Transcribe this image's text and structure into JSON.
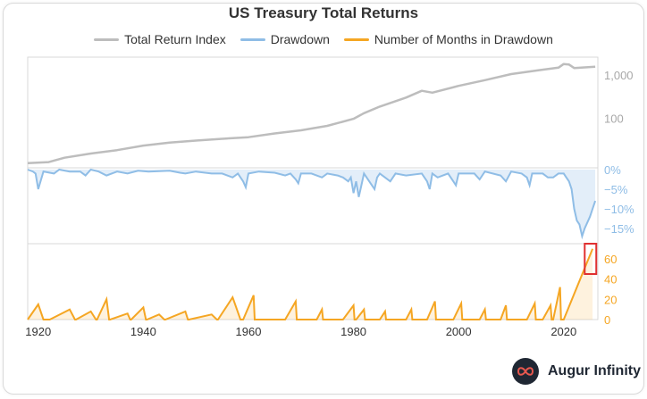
{
  "title": "US Treasury Total Returns",
  "legend": [
    {
      "label": "Total Return Index",
      "color": "#bdbdbd"
    },
    {
      "label": "Drawdown",
      "color": "#8fbde6"
    },
    {
      "label": "Number of Months in Drawdown",
      "color": "#f5a623"
    }
  ],
  "brand": {
    "name": "Augur Infinity",
    "icon": "infinity-icon"
  },
  "highlight_color": "#e03030",
  "chart_data": [
    {
      "type": "line",
      "name": "Total Return Index",
      "scale": "log",
      "color": "#bdbdbd",
      "yticks": [
        100,
        1000
      ],
      "ytick_labels": [
        "100",
        "1,000"
      ],
      "ylim": [
        7,
        2600
      ],
      "x": [
        1918,
        1922,
        1925,
        1930,
        1935,
        1940,
        1945,
        1950,
        1955,
        1960,
        1965,
        1970,
        1975,
        1980,
        1982,
        1985,
        1990,
        1993,
        1995,
        2000,
        2005,
        2010,
        2015,
        2019,
        2020,
        2021,
        2022,
        2024,
        2026
      ],
      "values": [
        9,
        9.5,
        12,
        15,
        18,
        23,
        27,
        30,
        33,
        36,
        44,
        52,
        66,
        96,
        130,
        185,
        300,
        430,
        390,
        560,
        760,
        1050,
        1280,
        1480,
        1800,
        1750,
        1450,
        1500,
        1550
      ]
    },
    {
      "type": "area",
      "name": "Drawdown",
      "color": "#8fbde6",
      "yticks": [
        0,
        -5,
        -10,
        -15
      ],
      "ytick_labels": [
        "0%",
        "−5%",
        "−10%",
        "−15%"
      ],
      "ylim": [
        -18,
        0
      ],
      "x": [
        1918,
        1919,
        1919.5,
        1920,
        1921,
        1923,
        1924,
        1926,
        1928,
        1929,
        1930,
        1931.5,
        1933,
        1935,
        1937,
        1939,
        1941,
        1945,
        1947,
        1948,
        1950,
        1953,
        1955,
        1957,
        1958,
        1959,
        1959.5,
        1960,
        1962,
        1965,
        1967,
        1968,
        1969,
        1969.5,
        1970,
        1972,
        1974,
        1975,
        1977,
        1978,
        1979,
        1979.5,
        1980,
        1980.5,
        1981,
        1981.5,
        1982,
        1983,
        1984,
        1984.5,
        1985,
        1987,
        1988,
        1990,
        1993,
        1994,
        1994.5,
        1995,
        1996,
        1998,
        1999,
        1999.5,
        2000,
        2003,
        2004,
        2005,
        2008,
        2009,
        2010,
        2012,
        2013,
        2013.5,
        2014,
        2016,
        2017,
        2018,
        2019,
        2020,
        2020.5,
        2021,
        2021.5,
        2022,
        2022.5,
        2023,
        2023.5,
        2024,
        2025,
        2025.5,
        2026
      ],
      "values": [
        0,
        -0.5,
        -1,
        -5,
        -0.5,
        -1,
        0,
        -0.5,
        -0.5,
        -1.5,
        0,
        -0.5,
        -1.5,
        -0.5,
        -1,
        -0.3,
        -0.5,
        -0.3,
        -0.8,
        -1,
        -0.5,
        -1,
        -1,
        -2,
        -1,
        -3,
        -4.5,
        -1,
        -0.5,
        -0.8,
        -1.5,
        -1,
        -2.5,
        -3.5,
        -1,
        -1,
        -2,
        -1,
        -1.5,
        -2,
        -3,
        -2,
        -6,
        -3,
        -7,
        -4,
        -1,
        -3,
        -5,
        -2,
        -1,
        -3,
        -1,
        -1.5,
        -1,
        -3,
        -5,
        -1,
        -2,
        -1,
        -3,
        -4,
        -1,
        -1,
        -2.5,
        -0.5,
        -1.5,
        -3,
        -0.5,
        -1,
        -2,
        -4,
        -1,
        -1,
        -2,
        -2,
        -1,
        -1,
        -2,
        -3,
        -5,
        -10,
        -13,
        -14,
        -17,
        -15,
        -12,
        -10,
        -8
      ]
    },
    {
      "type": "area",
      "name": "Number of Months in Drawdown",
      "color": "#f5a623",
      "yticks": [
        0,
        20,
        40,
        60
      ],
      "ytick_labels": [
        "0",
        "20",
        "40",
        "60"
      ],
      "ylim": [
        0,
        75
      ],
      "xticks": [
        1920,
        1940,
        1960,
        1980,
        2000,
        2020
      ],
      "xtick_labels": [
        "1920",
        "1940",
        "1960",
        "1980",
        "2000",
        "2020"
      ],
      "xlim": [
        1918,
        2026.5
      ],
      "x": [
        1918,
        1920,
        1921,
        1922,
        1922.2,
        1926,
        1927,
        1927.2,
        1930,
        1931,
        1931.2,
        1933,
        1933.5,
        1933.7,
        1937,
        1937.5,
        1937.7,
        1940,
        1940.5,
        1940.7,
        1943,
        1944,
        1944.2,
        1948,
        1948.5,
        1948.7,
        1953,
        1954,
        1954.2,
        1957,
        1958.5,
        1958.7,
        1959,
        1961,
        1961.2,
        1967,
        1969,
        1969.2,
        1973,
        1974,
        1974.2,
        1978,
        1980,
        1980.2,
        1980.5,
        1982,
        1982.2,
        1985,
        1986,
        1986.2,
        1990,
        1991,
        1991.2,
        1994,
        1995.5,
        1995.7,
        1999,
        2000.5,
        2000.7,
        2004,
        2005,
        2005.2,
        2008,
        2009,
        2009.2,
        2013,
        2014.5,
        2014.7,
        2016,
        2017.5,
        2017.7,
        2018,
        2019.3,
        2019.5,
        2020,
        2025.5
      ],
      "values": [
        0,
        15,
        0,
        0,
        0,
        10,
        0,
        0,
        8,
        0,
        0,
        20,
        0,
        0,
        6,
        0,
        0,
        12,
        0,
        0,
        5,
        0,
        0,
        8,
        0,
        0,
        5,
        0,
        0,
        22,
        0,
        0,
        0,
        24,
        0,
        0,
        18,
        0,
        0,
        10,
        0,
        0,
        14,
        0,
        0,
        10,
        0,
        0,
        8,
        0,
        0,
        10,
        0,
        0,
        18,
        0,
        0,
        16,
        0,
        0,
        10,
        0,
        0,
        14,
        0,
        0,
        16,
        0,
        0,
        14,
        0,
        0,
        32,
        0,
        0,
        70
      ],
      "highlight": {
        "x_from": 2024,
        "x_to": 2026.2,
        "y_from": 45,
        "y_to": 75
      }
    }
  ]
}
